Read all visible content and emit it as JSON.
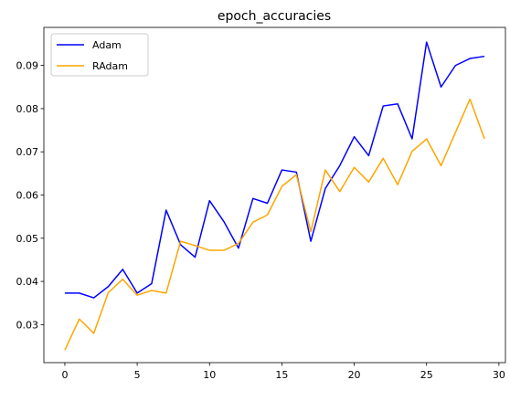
{
  "chart_data": {
    "type": "line",
    "title": "epoch_accuracies",
    "xlabel": "",
    "ylabel": "",
    "xlim": [
      -1.45,
      30.45
    ],
    "ylim": [
      0.0212,
      0.0988
    ],
    "xticks": [
      0,
      5,
      10,
      15,
      20,
      25,
      30
    ],
    "yticks": [
      0.03,
      0.04,
      0.05,
      0.06,
      0.07,
      0.08,
      0.09
    ],
    "ytick_labels": [
      "0.03",
      "0.04",
      "0.05",
      "0.06",
      "0.07",
      "0.08",
      "0.09"
    ],
    "grid": false,
    "legend_position": "top-left",
    "x": [
      0,
      1,
      2,
      3,
      4,
      5,
      6,
      7,
      8,
      9,
      10,
      11,
      12,
      13,
      14,
      15,
      16,
      17,
      18,
      19,
      20,
      21,
      22,
      23,
      24,
      25,
      26,
      27,
      28,
      29
    ],
    "series": [
      {
        "name": "Adam",
        "color": "#0000ff",
        "values": [
          0.0373,
          0.0373,
          0.0362,
          0.0388,
          0.0428,
          0.0373,
          0.0395,
          0.0565,
          0.0485,
          0.0456,
          0.0587,
          0.0538,
          0.0477,
          0.0592,
          0.0581,
          0.0658,
          0.0653,
          0.0493,
          0.0615,
          0.0668,
          0.0735,
          0.0691,
          0.0806,
          0.0811,
          0.073,
          0.0954,
          0.085,
          0.09,
          0.0916,
          0.0921
        ]
      },
      {
        "name": "RAdam",
        "color": "#ffa500",
        "values": [
          0.0241,
          0.0313,
          0.028,
          0.0374,
          0.0405,
          0.0368,
          0.0379,
          0.0373,
          0.0493,
          0.0483,
          0.0472,
          0.0472,
          0.0488,
          0.0537,
          0.0554,
          0.062,
          0.0647,
          0.0515,
          0.0658,
          0.0608,
          0.0664,
          0.063,
          0.0685,
          0.0624,
          0.0701,
          0.073,
          0.0668,
          0.0745,
          0.0822,
          0.073
        ]
      }
    ]
  }
}
